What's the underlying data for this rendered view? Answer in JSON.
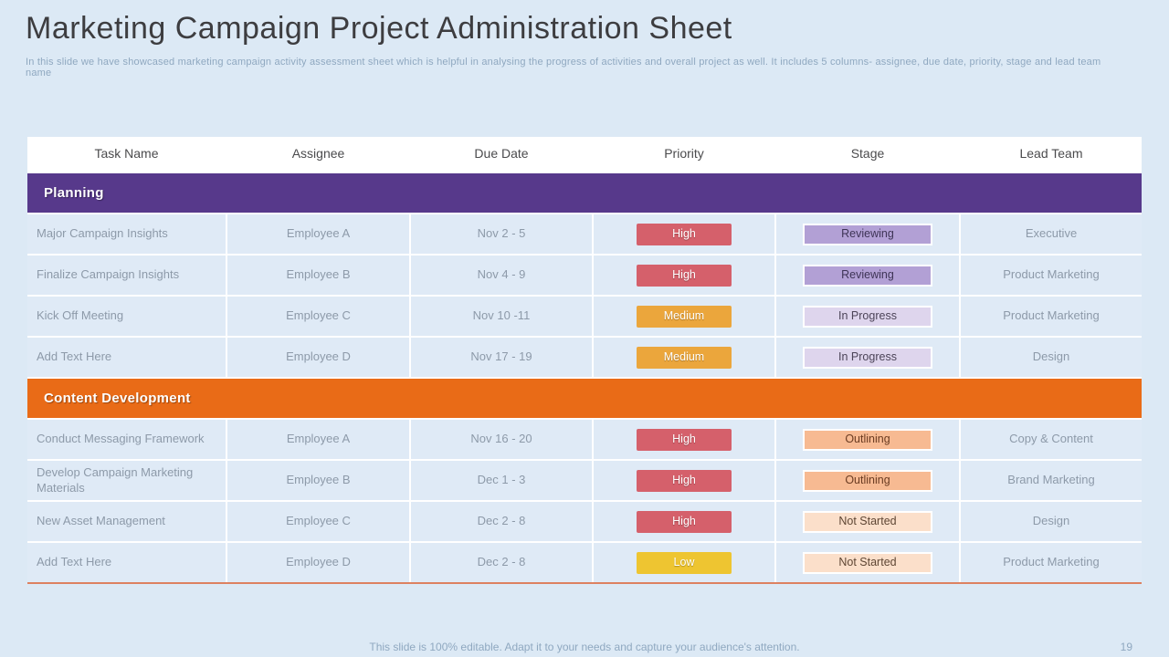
{
  "slide": {
    "title": "Marketing Campaign Project Administration Sheet",
    "subtitle": "In this slide we have showcased marketing campaign  activity assessment sheet which is helpful in analysing the progress of activities and overall project as well. It includes 5  columns- assignee, due date, priority, stage and lead team name",
    "footer": "This slide is 100% editable. Adapt it to your needs and capture your audience's attention.",
    "page_number": "19"
  },
  "colors": {
    "background": "#dce9f5",
    "table_bottom_line": "#dd8160",
    "priority": {
      "High": {
        "bg": "#d5606b",
        "text": "#ffffff"
      },
      "Medium": {
        "bg": "#eba63c",
        "text": "#ffffff"
      },
      "Low": {
        "bg": "#eec531",
        "text": "#ffffff"
      }
    },
    "stage": {
      "Reviewing": {
        "bg": "#b2a0d5",
        "text": "#3e3456"
      },
      "In Progress": {
        "bg": "#ded5ed",
        "text": "#4c4458"
      },
      "Outlining": {
        "bg": "#f7ba92",
        "text": "#6b3c22"
      },
      "Not Started": {
        "bg": "#fbdfca",
        "text": "#5e4634"
      }
    }
  },
  "table": {
    "columns": [
      "Task Name",
      "Assignee",
      "Due Date",
      "Priority",
      "Stage",
      "Lead Team"
    ],
    "sections": [
      {
        "name": "Planning",
        "color": "#57398b",
        "rows": [
          {
            "task": "Major Campaign Insights",
            "assignee": "Employee A",
            "due": "Nov 2 - 5",
            "priority": "High",
            "stage": "Reviewing",
            "lead": "Executive"
          },
          {
            "task": "Finalize Campaign Insights",
            "assignee": "Employee B",
            "due": "Nov 4 - 9",
            "priority": "High",
            "stage": "Reviewing",
            "lead": "Product Marketing"
          },
          {
            "task": "Kick Off Meeting",
            "assignee": "Employee C",
            "due": "Nov 10 -11",
            "priority": "Medium",
            "stage": "In Progress",
            "lead": "Product Marketing"
          },
          {
            "task": "Add Text Here",
            "assignee": "Employee D",
            "due": "Nov 17 - 19",
            "priority": "Medium",
            "stage": "In Progress",
            "lead": "Design"
          }
        ]
      },
      {
        "name": "Content Development",
        "color": "#e96b17",
        "rows": [
          {
            "task": "Conduct Messaging Framework",
            "assignee": "Employee A",
            "due": "Nov 16 - 20",
            "priority": "High",
            "stage": "Outlining",
            "lead": "Copy & Content"
          },
          {
            "task": "Develop Campaign Marketing Materials",
            "assignee": "Employee B",
            "due": "Dec 1 - 3",
            "priority": "High",
            "stage": "Outlining",
            "lead": "Brand Marketing"
          },
          {
            "task": "New Asset Management",
            "assignee": "Employee C",
            "due": "Dec 2 - 8",
            "priority": "High",
            "stage": "Not Started",
            "lead": "Design"
          },
          {
            "task": "Add Text Here",
            "assignee": "Employee D",
            "due": "Dec 2 - 8",
            "priority": "Low",
            "stage": "Not Started",
            "lead": "Product Marketing"
          }
        ]
      }
    ]
  }
}
